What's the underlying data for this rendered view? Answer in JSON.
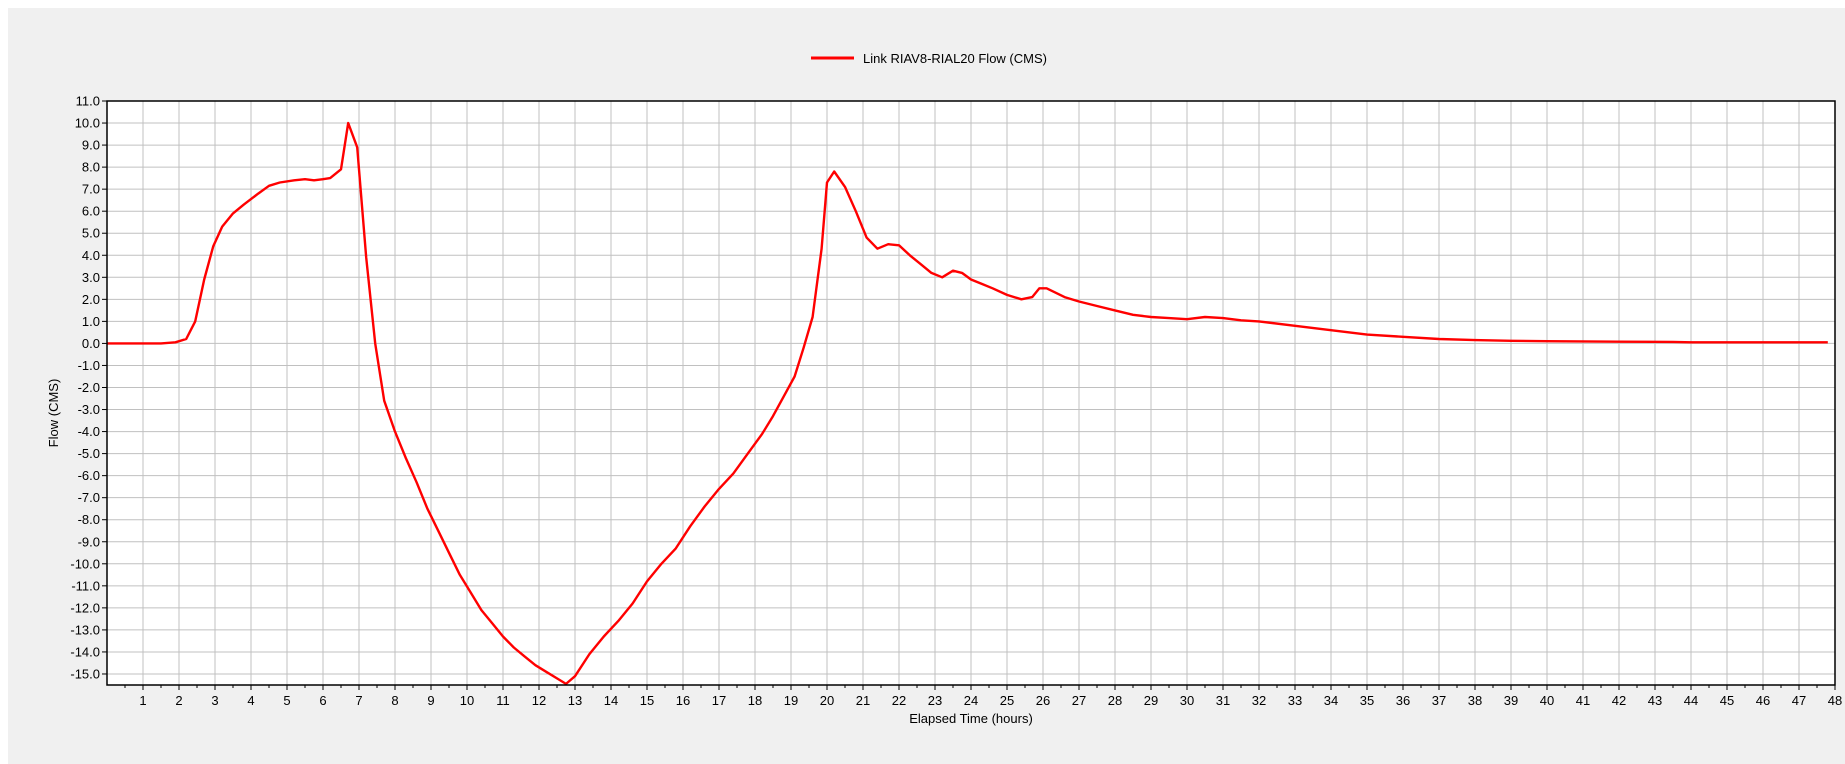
{
  "chart_data": {
    "type": "line",
    "title": "",
    "xlabel": "Elapsed Time (hours)",
    "ylabel": "Flow (CMS)",
    "xlim": [
      0,
      48
    ],
    "ylim": [
      -15.5,
      11.0
    ],
    "x_ticks": [
      1,
      2,
      3,
      4,
      5,
      6,
      7,
      8,
      9,
      10,
      11,
      12,
      13,
      14,
      15,
      16,
      17,
      18,
      19,
      20,
      21,
      22,
      23,
      24,
      25,
      26,
      27,
      28,
      29,
      30,
      31,
      32,
      33,
      34,
      35,
      36,
      37,
      38,
      39,
      40,
      41,
      42,
      43,
      44,
      45,
      46,
      47,
      48
    ],
    "y_ticks": [
      "11.0",
      "10.0",
      "9.0",
      "8.0",
      "7.0",
      "6.0",
      "5.0",
      "4.0",
      "3.0",
      "2.0",
      "1.0",
      "0.0",
      "-1.0",
      "-2.0",
      "-3.0",
      "-4.0",
      "-5.0",
      "-6.0",
      "-7.0",
      "-8.0",
      "-9.0",
      "-10.0",
      "-11.0",
      "-12.0",
      "-13.0",
      "-14.0",
      "-15.0"
    ],
    "y_tick_values": [
      11,
      10,
      9,
      8,
      7,
      6,
      5,
      4,
      3,
      2,
      1,
      0,
      -1,
      -2,
      -3,
      -4,
      -5,
      -6,
      -7,
      -8,
      -9,
      -10,
      -11,
      -12,
      -13,
      -14,
      -15
    ],
    "grid": true,
    "legend_position": "top-center",
    "series": [
      {
        "name": "Link RIAV8-RIAL20 Flow (CMS)",
        "color": "#ff0000",
        "x": [
          0,
          1.5,
          1.9,
          2.2,
          2.45,
          2.7,
          2.95,
          3.2,
          3.5,
          3.8,
          4.2,
          4.5,
          4.8,
          5.2,
          5.5,
          5.75,
          6.0,
          6.2,
          6.5,
          6.7,
          6.95,
          7.2,
          7.45,
          7.7,
          8.0,
          8.3,
          8.6,
          8.9,
          9.2,
          9.5,
          9.8,
          10.1,
          10.4,
          10.7,
          11.0,
          11.3,
          11.6,
          11.9,
          12.2,
          12.5,
          12.75,
          13.0,
          13.4,
          13.8,
          14.2,
          14.6,
          15.0,
          15.4,
          15.8,
          16.2,
          16.6,
          17.0,
          17.4,
          17.8,
          18.2,
          18.5,
          18.8,
          19.1,
          19.35,
          19.6,
          19.85,
          20.0,
          20.2,
          20.5,
          20.8,
          21.1,
          21.4,
          21.7,
          22.0,
          22.3,
          22.6,
          22.9,
          23.2,
          23.5,
          23.75,
          24.0,
          24.3,
          24.6,
          25.0,
          25.4,
          25.7,
          25.9,
          26.1,
          26.35,
          26.6,
          27.0,
          27.5,
          28.0,
          28.5,
          29.0,
          29.5,
          30.0,
          30.5,
          31.0,
          31.5,
          32.0,
          33.0,
          34.0,
          35.0,
          36.0,
          37.0,
          38.0,
          39.0,
          40.0,
          42.0,
          43.5,
          44.0,
          46.0,
          47.8
        ],
        "y": [
          0.0,
          0.0,
          0.05,
          0.2,
          1.0,
          2.9,
          4.4,
          5.3,
          5.9,
          6.3,
          6.8,
          7.15,
          7.3,
          7.4,
          7.45,
          7.4,
          7.45,
          7.5,
          7.9,
          10.0,
          8.9,
          3.9,
          0.0,
          -2.6,
          -4.0,
          -5.2,
          -6.3,
          -7.5,
          -8.5,
          -9.5,
          -10.5,
          -11.3,
          -12.1,
          -12.7,
          -13.3,
          -13.8,
          -14.2,
          -14.6,
          -14.9,
          -15.2,
          -15.45,
          -15.1,
          -14.1,
          -13.3,
          -12.6,
          -11.8,
          -10.8,
          -10.0,
          -9.3,
          -8.3,
          -7.4,
          -6.6,
          -5.9,
          -5.0,
          -4.1,
          -3.3,
          -2.4,
          -1.5,
          -0.2,
          1.2,
          4.3,
          7.3,
          7.8,
          7.1,
          6.0,
          4.8,
          4.3,
          4.5,
          4.45,
          4.0,
          3.6,
          3.2,
          3.0,
          3.3,
          3.2,
          2.9,
          2.7,
          2.5,
          2.2,
          2.0,
          2.1,
          2.5,
          2.5,
          2.3,
          2.1,
          1.9,
          1.7,
          1.5,
          1.3,
          1.2,
          1.15,
          1.1,
          1.2,
          1.15,
          1.05,
          1.0,
          0.8,
          0.6,
          0.4,
          0.3,
          0.2,
          0.15,
          0.12,
          0.1,
          0.08,
          0.07,
          0.05,
          0.05,
          0.05
        ]
      }
    ]
  }
}
